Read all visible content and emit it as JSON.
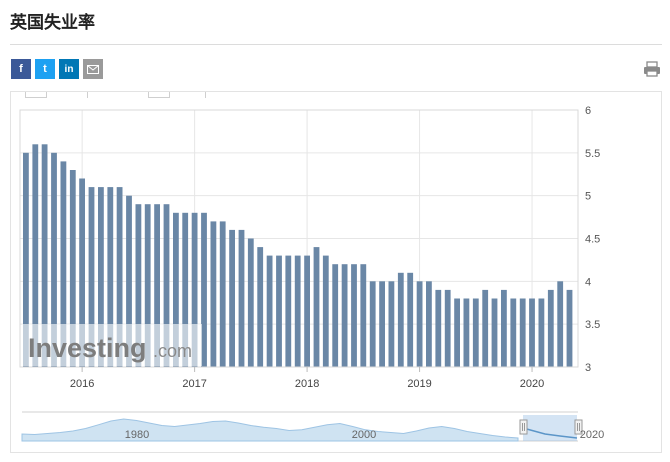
{
  "page": {
    "title": "英国失业率"
  },
  "share": {
    "facebook": "f",
    "twitter": "t",
    "linkedin": "in",
    "email": "✉"
  },
  "icons": {
    "print": "print-icon",
    "email": "mail-icon"
  },
  "colors": {
    "bar": "#6a87a6",
    "grid": "#e6e6e6",
    "navigator_fill": "#cfe3f2",
    "navigator_line": "#9ec4e4",
    "navigator_selected": "#5b95c8"
  },
  "watermark": {
    "brand": "Investing",
    "suffix": ".com"
  },
  "chart_data": {
    "type": "bar",
    "title": "",
    "xlabel": "",
    "ylabel": "",
    "ylim": [
      3,
      6
    ],
    "y_ticks": [
      3,
      3.5,
      4,
      4.5,
      5,
      5.5,
      6
    ],
    "y_tick_labels": [
      "3",
      "3.5",
      "4",
      "4.5",
      "5",
      "5.5",
      "6"
    ],
    "x_tick_labels": [
      "2016",
      "2017",
      "2018",
      "2019",
      "2020"
    ],
    "x_tick_bar_index": [
      6,
      18,
      30,
      42,
      54
    ],
    "grid": true,
    "values": [
      5.5,
      5.6,
      5.6,
      5.5,
      5.4,
      5.3,
      5.2,
      5.1,
      5.1,
      5.1,
      5.1,
      5.0,
      4.9,
      4.9,
      4.9,
      4.9,
      4.8,
      4.8,
      4.8,
      4.8,
      4.7,
      4.7,
      4.6,
      4.6,
      4.5,
      4.4,
      4.3,
      4.3,
      4.3,
      4.3,
      4.3,
      4.4,
      4.3,
      4.2,
      4.2,
      4.2,
      4.2,
      4.0,
      4.0,
      4.0,
      4.1,
      4.1,
      4.0,
      4.0,
      3.9,
      3.9,
      3.8,
      3.8,
      3.8,
      3.9,
      3.8,
      3.9,
      3.8,
      3.8,
      3.8,
      3.8,
      3.9,
      4.0,
      3.9
    ]
  },
  "navigator": {
    "labels": [
      "1980",
      "2000",
      "2020"
    ]
  }
}
